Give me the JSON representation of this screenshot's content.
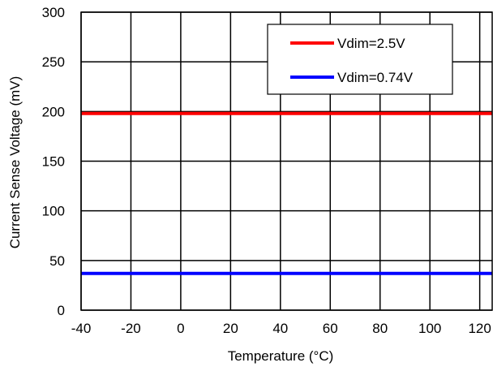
{
  "chart_data": {
    "type": "line",
    "title": "",
    "xlabel": "Temperature (°C)",
    "ylabel": "Current Sense Voltage (mV)",
    "xlim": [
      -40,
      125
    ],
    "ylim": [
      0,
      300
    ],
    "x_ticks": [
      -40,
      -20,
      0,
      20,
      40,
      60,
      80,
      100,
      120
    ],
    "y_ticks": [
      0,
      50,
      100,
      150,
      200,
      250,
      300
    ],
    "grid": true,
    "legend_position": "top-right",
    "series": [
      {
        "name": "Vdim=2.5V",
        "color": "#ff0000",
        "x": [
          -40,
          125
        ],
        "y": [
          198,
          198
        ]
      },
      {
        "name": "Vdim=0.74V",
        "color": "#0000ff",
        "x": [
          -40,
          125
        ],
        "y": [
          37,
          37
        ]
      }
    ]
  }
}
